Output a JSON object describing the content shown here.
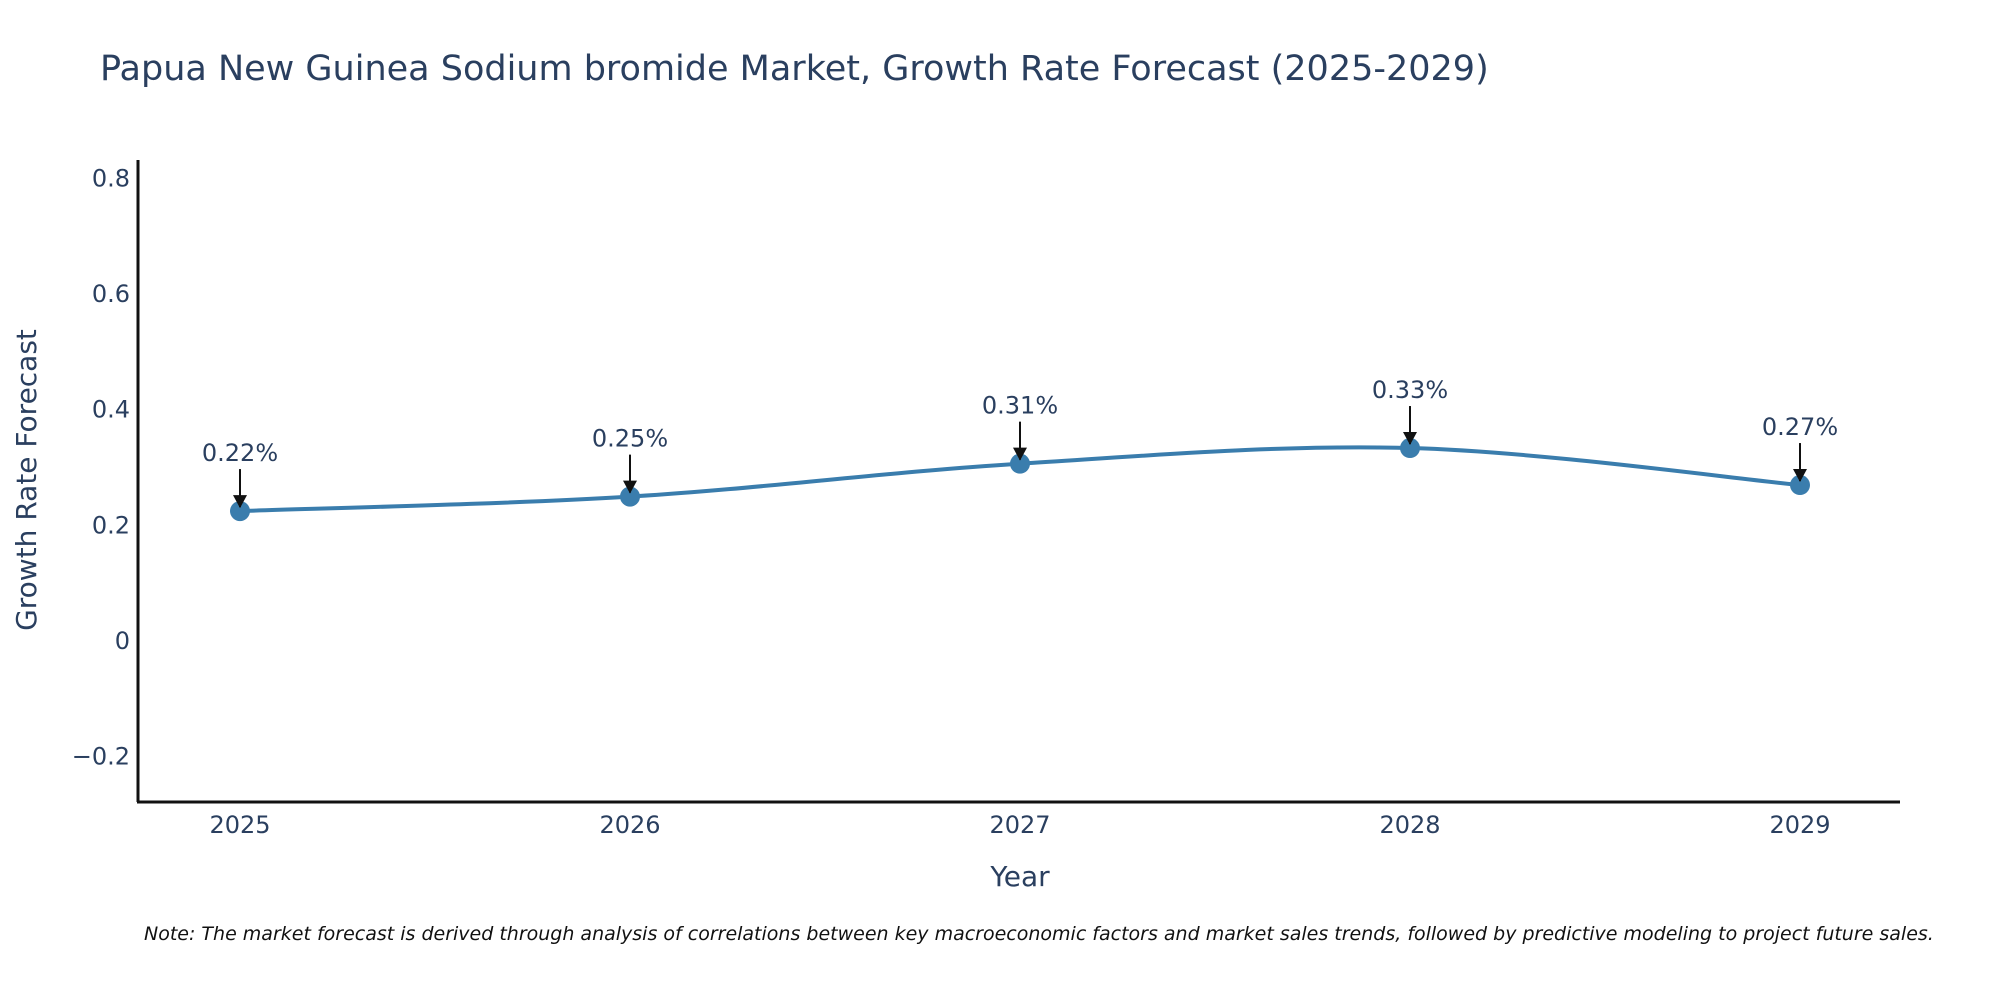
{
  "chart_data": {
    "type": "line",
    "title": "Papua New Guinea Sodium bromide Market, Growth Rate Forecast (2025-2029)",
    "xlabel": "Year",
    "ylabel": "Growth Rate Forecast",
    "categories": [
      "2025",
      "2026",
      "2027",
      "2028",
      "2029"
    ],
    "series": [
      {
        "name": "Growth Rate Forecast",
        "values": [
          0.223,
          0.248,
          0.305,
          0.332,
          0.268
        ],
        "labels": [
          "0.22%",
          "0.25%",
          "0.31%",
          "0.33%",
          "0.27%"
        ],
        "color": "#3a7dad"
      }
    ],
    "ylim": [
      -0.28,
      0.83
    ],
    "yticks": [
      -0.2,
      0,
      0.2,
      0.4,
      0.6,
      0.8
    ],
    "ytick_labels": [
      "−0.2",
      "0",
      "0.2",
      "0.4",
      "0.6",
      "0.8"
    ],
    "grid": false,
    "note": "Note: The market forecast is derived through analysis of correlations between key macroeconomic factors and market sales trends, followed by predictive modeling to project future sales."
  }
}
